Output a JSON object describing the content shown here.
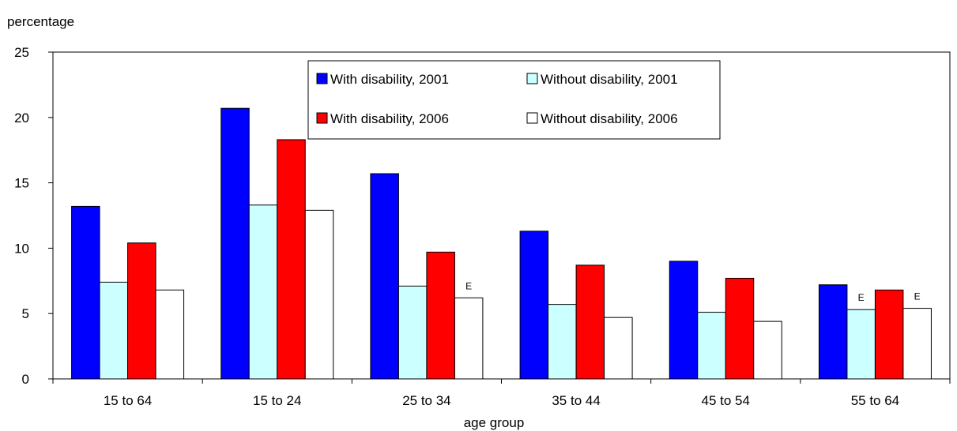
{
  "chart_data": {
    "type": "bar",
    "ylabel": "percentage",
    "xlabel": "age group",
    "ylim": [
      0,
      25
    ],
    "yticks": [
      0,
      5,
      10,
      15,
      20,
      25
    ],
    "grid": false,
    "legend_position": "top-center",
    "categories": [
      "15 to 64",
      "15 to 24",
      "25 to 34",
      "35 to 44",
      "45 to 54",
      "55 to 64"
    ],
    "series": [
      {
        "name": "With disability, 2001",
        "color": "#0000ff",
        "values": [
          13.2,
          20.7,
          15.7,
          11.3,
          9.0,
          7.2
        ],
        "flags": [
          "",
          "",
          "",
          "",
          "",
          ""
        ]
      },
      {
        "name": "Without disability, 2001",
        "color": "#ccffff",
        "values": [
          7.4,
          13.3,
          7.1,
          5.7,
          5.1,
          5.3
        ],
        "flags": [
          "",
          "",
          "",
          "",
          "",
          "E"
        ]
      },
      {
        "name": "With disability, 2006",
        "color": "#ff0000",
        "values": [
          10.4,
          18.3,
          9.7,
          8.7,
          7.7,
          6.8
        ],
        "flags": [
          "",
          "",
          "",
          "",
          "",
          ""
        ]
      },
      {
        "name": "Without disability, 2006",
        "color": "#ffffff",
        "values": [
          6.8,
          12.9,
          6.2,
          4.7,
          4.4,
          5.4
        ],
        "flags": [
          "",
          "",
          "E",
          "",
          "",
          "E"
        ]
      }
    ]
  }
}
